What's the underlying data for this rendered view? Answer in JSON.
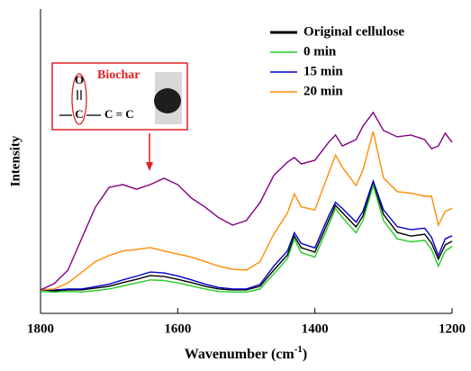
{
  "chart_data": {
    "type": "line",
    "x_label": {
      "text": "Wavenumber (cm",
      "sup": "-1",
      "end": ")"
    },
    "y_label": "Intensity",
    "x": [
      1800,
      1780,
      1760,
      1740,
      1720,
      1700,
      1680,
      1660,
      1640,
      1620,
      1600,
      1580,
      1560,
      1540,
      1520,
      1500,
      1480,
      1460,
      1440,
      1430,
      1420,
      1400,
      1380,
      1370,
      1360,
      1340,
      1330,
      1315,
      1300,
      1280,
      1260,
      1240,
      1230,
      1220,
      1210,
      1200
    ],
    "xlim": [
      1800,
      1200
    ],
    "xticks": [
      1800,
      1600,
      1400,
      1200
    ],
    "ylim": [
      0,
      100
    ],
    "legend": "upper right",
    "series": [
      {
        "name": "Original cellulose",
        "color": "#000000",
        "values": [
          7.7,
          7.4,
          7.7,
          7.7,
          8.3,
          8.9,
          10.1,
          11.2,
          12.4,
          12.1,
          11.2,
          10.1,
          8.9,
          8.0,
          7.7,
          7.7,
          8.9,
          14.2,
          19.2,
          25.4,
          21.6,
          20.1,
          30.5,
          35.5,
          33.1,
          28.4,
          32.0,
          42.9,
          32.5,
          26.6,
          25.4,
          26.0,
          23.1,
          17.8,
          22.5,
          23.7
        ]
      },
      {
        "name": "0 min",
        "color": "#22cc22",
        "values": [
          7.2,
          7.0,
          7.2,
          7.0,
          7.5,
          8.0,
          9.0,
          10.0,
          11.0,
          10.8,
          10.0,
          9.0,
          8.0,
          7.2,
          7.0,
          7.0,
          8.0,
          13.0,
          18.0,
          24.5,
          20.0,
          18.5,
          29.0,
          34.5,
          31.5,
          26.5,
          30.5,
          42.0,
          30.5,
          24.5,
          23.5,
          24.0,
          21.0,
          15.5,
          20.5,
          22.0
        ]
      },
      {
        "name": "15 min",
        "color": "#0000cc",
        "values": [
          7.9,
          7.7,
          8.0,
          8.0,
          8.8,
          9.6,
          11.0,
          12.2,
          13.6,
          13.3,
          12.3,
          11.0,
          9.6,
          8.5,
          8.0,
          8.0,
          9.5,
          15.5,
          20.5,
          26.5,
          23.0,
          21.5,
          32.0,
          36.5,
          34.5,
          30.0,
          33.5,
          43.5,
          34.0,
          28.5,
          27.5,
          28.0,
          25.0,
          19.0,
          24.5,
          25.5
        ]
      },
      {
        "name": "20 min",
        "color": "#ff8c00",
        "values": [
          7.7,
          8.0,
          10.0,
          13.5,
          17.0,
          19.0,
          20.5,
          21.0,
          21.6,
          20.5,
          19.5,
          18.5,
          17.0,
          15.5,
          14.5,
          14.2,
          17.0,
          26.0,
          33.0,
          39.3,
          35.0,
          34.0,
          46.0,
          52.0,
          48.0,
          42.0,
          47.0,
          59.8,
          44.5,
          40.0,
          39.5,
          38.5,
          38.5,
          29.0,
          33.5,
          34.5
        ]
      },
      {
        "color": "#800080",
        "values": [
          7.7,
          9.8,
          14.2,
          24.6,
          34.9,
          41.4,
          42.3,
          40.8,
          42.3,
          44.4,
          42.3,
          37.9,
          34.9,
          31.4,
          29.0,
          30.5,
          36.4,
          45.3,
          49.7,
          51.2,
          49.1,
          50.3,
          56.2,
          58.6,
          55.0,
          57.1,
          61.5,
          66.0,
          60.1,
          58.0,
          58.6,
          57.1,
          54.1,
          55.0,
          59.2,
          56.2
        ]
      }
    ],
    "annotation": {
      "label": "Biochar",
      "atom_top": "O",
      "atom_mid": "C",
      "chain": "C = C"
    }
  }
}
